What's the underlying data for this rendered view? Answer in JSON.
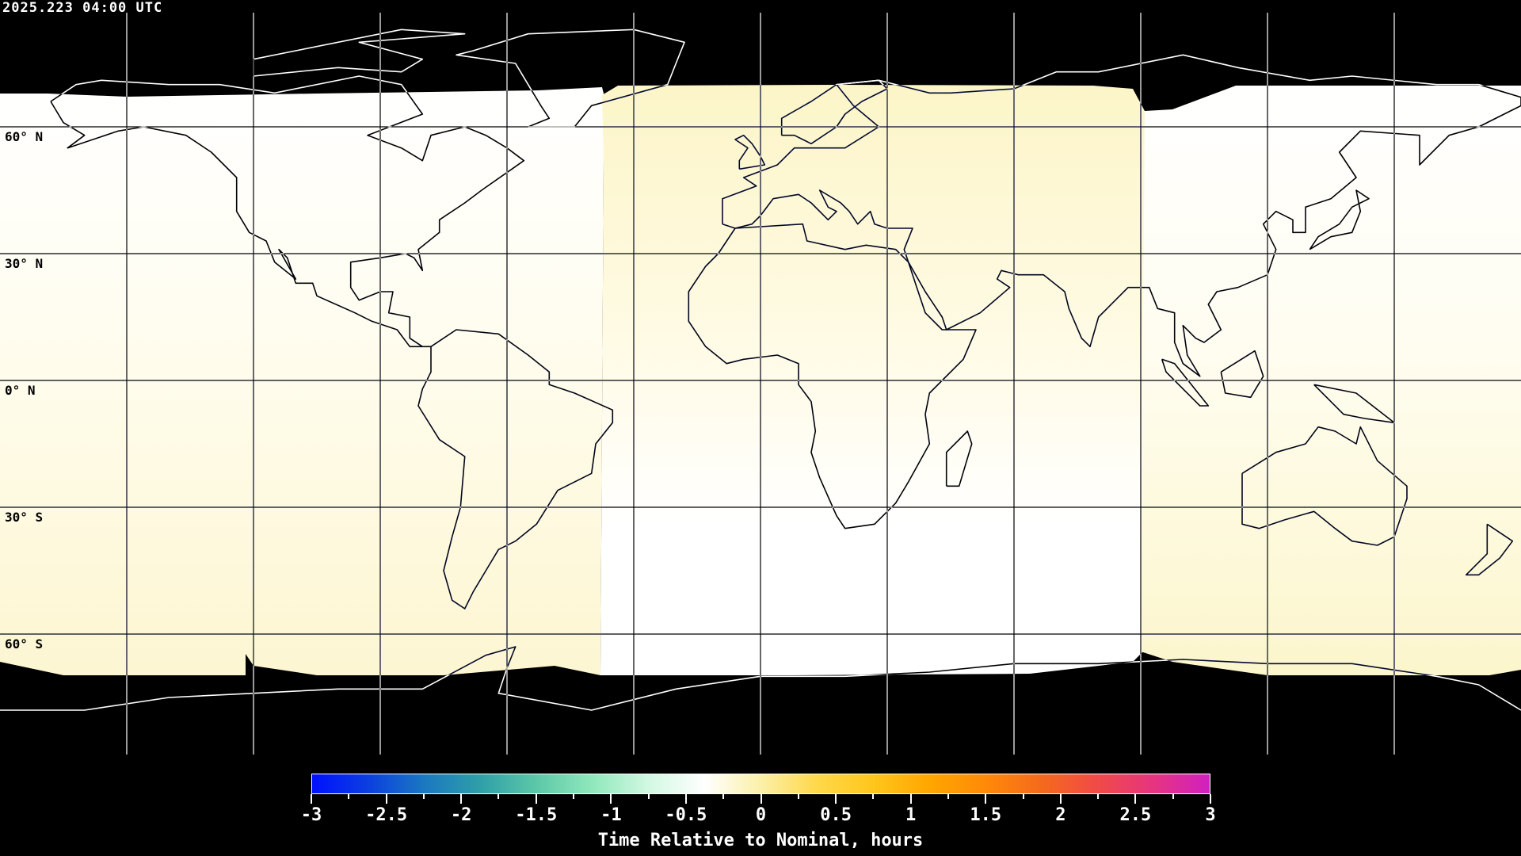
{
  "title": "2025.223 04:00 UTC",
  "lat_labels": [
    "60° N",
    "30° N",
    "0° N",
    "30° S",
    "60° S"
  ],
  "map": {
    "projection": "equirectangular",
    "grid_spacing_deg": 30,
    "no_data_color": "#000000",
    "coastline_color": "inverse"
  },
  "colorbar": {
    "title": "Time Relative to Nominal, hours",
    "min": -3,
    "max": 3,
    "tick_labels": [
      "-3",
      "-2.5",
      "-2",
      "-1.5",
      "-1",
      "-0.5",
      "0",
      "0.5",
      "1",
      "1.5",
      "2",
      "2.5",
      "3"
    ],
    "colors": [
      "#0010ff",
      "#0c3fe0",
      "#1a78c0",
      "#2f9fa8",
      "#5cc8a8",
      "#90e8bc",
      "#d2f8e2",
      "#ffffff",
      "#fbf0a8",
      "#ffd84a",
      "#ffc61c",
      "#ffa600",
      "#ff8a08",
      "#f46a1c",
      "#f04a48",
      "#e63480",
      "#d020c0"
    ]
  }
}
